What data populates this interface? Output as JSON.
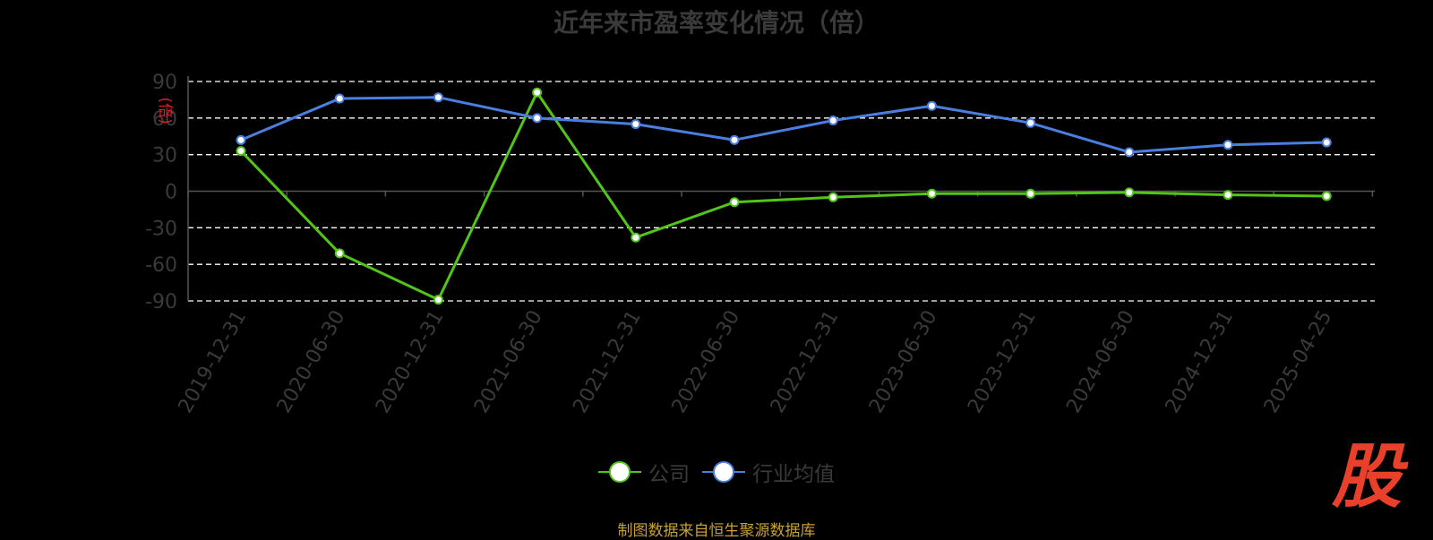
{
  "chart_data": {
    "type": "line",
    "title": "近年来市盈率变化情况（倍）",
    "ylabel": "(倍)",
    "ylim": [
      -90,
      90
    ],
    "yticks": [
      90,
      60,
      30,
      0,
      -30,
      -60,
      -90
    ],
    "categories": [
      "2019-12-31",
      "2020-06-30",
      "2020-12-31",
      "2021-06-30",
      "2021-12-31",
      "2022-06-30",
      "2022-12-31",
      "2023-06-30",
      "2023-12-31",
      "2024-06-30",
      "2024-12-31",
      "2025-04-25"
    ],
    "series": [
      {
        "name": "公司",
        "color": "#52c41a",
        "values": [
          33,
          -51,
          -89,
          81,
          -38,
          -9,
          -5,
          -2,
          -2,
          -1,
          -3,
          -4
        ]
      },
      {
        "name": "行业均值",
        "color": "#4a7fe0",
        "values": [
          42,
          76,
          77,
          60,
          55,
          42,
          58,
          70,
          56,
          32,
          38,
          40
        ]
      }
    ],
    "grid": true,
    "legend_position": "bottom"
  },
  "footer": {
    "source": "制图数据来自恒生聚源数据库",
    "logo_text": "股"
  }
}
